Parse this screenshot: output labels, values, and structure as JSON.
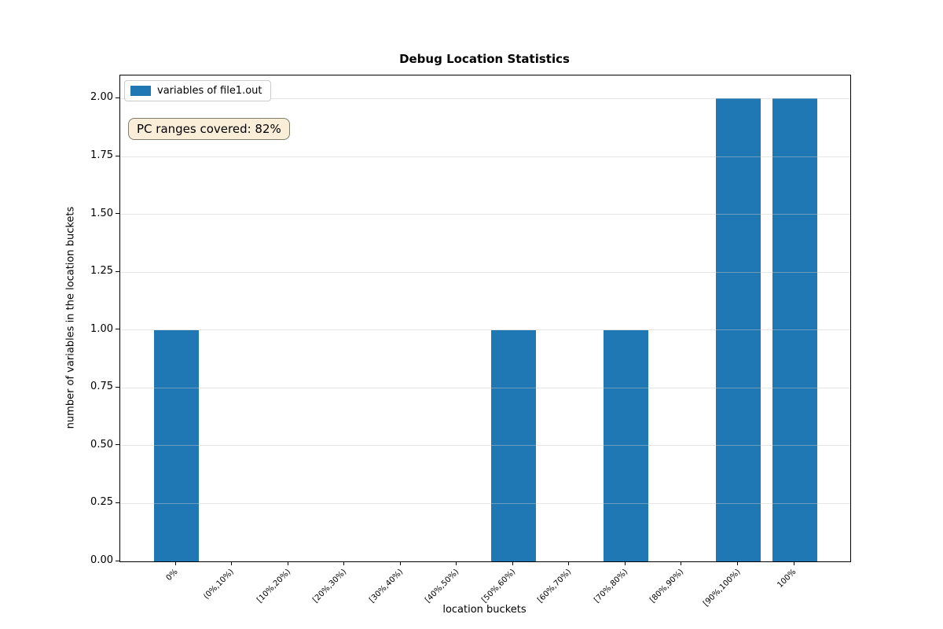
{
  "chart_data": {
    "type": "bar",
    "title": "Debug Location Statistics",
    "xlabel": "location buckets",
    "ylabel": "number of variables in the location buckets",
    "categories": [
      "0%",
      "(0%,10%)",
      "[10%,20%)",
      "[20%,30%)",
      "[30%,40%)",
      "[40%,50%)",
      "[50%,60%)",
      "[60%,70%)",
      "[70%,80%)",
      "[80%,90%)",
      "[90%,100%)",
      "100%"
    ],
    "series": [
      {
        "name": "variables of file1.out",
        "values": [
          1,
          0,
          0,
          0,
          0,
          0,
          1,
          0,
          1,
          0,
          2,
          2
        ],
        "color": "#1f77b4"
      }
    ],
    "ylim": [
      0,
      2.1
    ],
    "ytick_values": [
      0,
      0.25,
      0.5,
      0.75,
      1.0,
      1.25,
      1.5,
      1.75,
      2.0
    ],
    "ytick_labels": [
      "0.00",
      "0.25",
      "0.50",
      "0.75",
      "1.00",
      "1.25",
      "1.50",
      "1.75",
      "2.00"
    ],
    "grid": "horizontal",
    "legend_position": "upper-left",
    "annotation": "PC ranges covered: 82%",
    "annotation_bg": "#faeed9",
    "annotation_border": "#7d7c6d"
  }
}
